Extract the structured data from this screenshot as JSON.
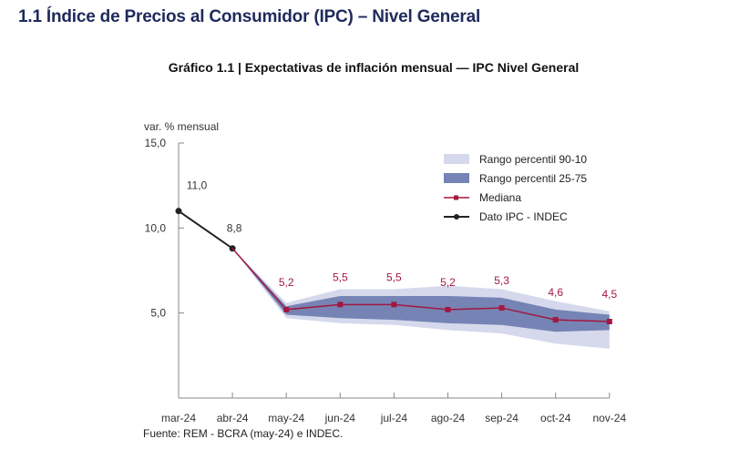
{
  "header": {
    "section_title": "1.1 Índice de Precios al Consumidor (IPC) – Nivel General"
  },
  "chart_data": {
    "type": "line",
    "title": "Gráfico 1.1 | Expectativas de inflación mensual — IPC Nivel General",
    "ylabel": "var. % mensual",
    "xlabel": "",
    "ylim": [
      0,
      15
    ],
    "yticks": [
      5,
      10,
      15
    ],
    "ytick_labels": [
      "5,0",
      "10,0",
      "15,0"
    ],
    "categories": [
      "mar-24",
      "abr-24",
      "may-24",
      "jun-24",
      "jul-24",
      "ago-24",
      "sep-24",
      "oct-24",
      "nov-24"
    ],
    "series": [
      {
        "name": "Dato IPC - INDEC",
        "type": "line",
        "color": "#222222",
        "values": [
          11.0,
          8.8,
          null,
          null,
          null,
          null,
          null,
          null,
          null
        ],
        "labels": [
          "11,0",
          "8,8",
          null,
          null,
          null,
          null,
          null,
          null,
          null
        ]
      },
      {
        "name": "Mediana",
        "type": "line",
        "color": "#a3173f",
        "values": [
          null,
          8.8,
          5.2,
          5.5,
          5.5,
          5.2,
          5.3,
          4.6,
          4.5
        ],
        "labels": [
          null,
          null,
          "5,2",
          "5,5",
          "5,5",
          "5,2",
          "5,3",
          "4,6",
          "4,5"
        ]
      },
      {
        "name": "Rango percentil 90-10",
        "type": "band",
        "color": "#d5d9eb",
        "upper": [
          null,
          8.8,
          5.6,
          6.4,
          6.4,
          6.6,
          6.4,
          5.7,
          5.1
        ],
        "lower": [
          null,
          8.8,
          4.7,
          4.4,
          4.3,
          4.0,
          3.8,
          3.2,
          2.9
        ]
      },
      {
        "name": "Rango percentil 25-75",
        "type": "band",
        "color": "#7584b5",
        "upper": [
          null,
          8.8,
          5.4,
          6.0,
          6.0,
          6.0,
          5.9,
          5.2,
          4.9
        ],
        "lower": [
          null,
          8.8,
          4.9,
          4.7,
          4.6,
          4.4,
          4.3,
          3.9,
          4.0
        ]
      }
    ],
    "legend": {
      "position": "top-right",
      "entries": [
        {
          "label": "Rango percentil 90-10",
          "kind": "band-light"
        },
        {
          "label": "Rango percentil 25-75",
          "kind": "band-dark"
        },
        {
          "label": "Mediana",
          "kind": "line-red"
        },
        {
          "label": "Dato IPC - INDEC",
          "kind": "line-black"
        }
      ]
    },
    "grid": false,
    "source": "Fuente: REM - BCRA (may-24) e INDEC."
  }
}
